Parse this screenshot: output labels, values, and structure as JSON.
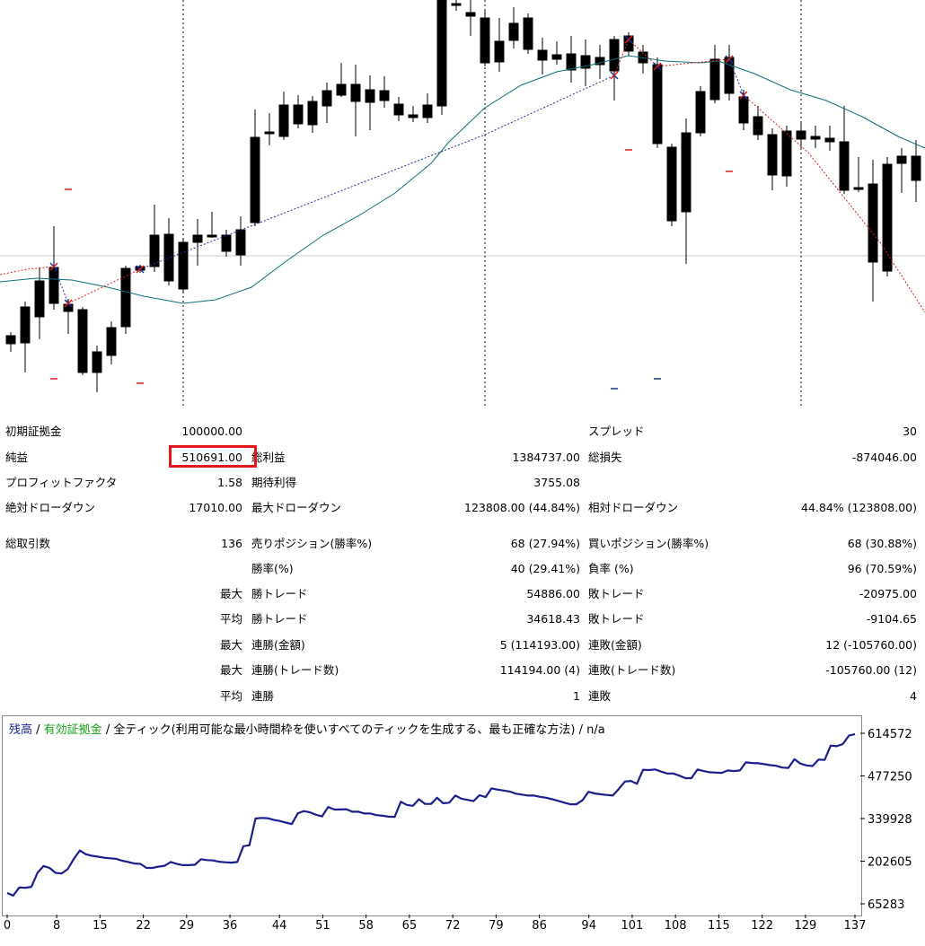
{
  "candle_chart": {
    "colors": {
      "bull_fill": "#ffffff",
      "bear_fill": "#000000",
      "ma": "#0f6e7a",
      "sar_red": "#e31a1c",
      "sar_blue": "#1f2f9a",
      "grid": "#c8c8c8"
    }
  },
  "report": {
    "initial_deposit": {
      "label": "初期証拠金",
      "value": "100000.00"
    },
    "spread": {
      "label": "スプレッド",
      "value": "30"
    },
    "net_profit": {
      "label": "純益",
      "value": "510691.00"
    },
    "gross_profit": {
      "label": "総利益",
      "value": "1384737.00"
    },
    "gross_loss": {
      "label": "総損失",
      "value": "-874046.00"
    },
    "profit_factor": {
      "label": "プロフィットファクタ",
      "value": "1.58"
    },
    "expected_payoff": {
      "label": "期待利得",
      "value": "3755.08"
    },
    "absolute_drawdown": {
      "label": "絶対ドローダウン",
      "value": "17010.00"
    },
    "max_drawdown": {
      "label": "最大ドローダウン",
      "value": "123808.00 (44.84%)"
    },
    "relative_drawdown": {
      "label": "相対ドローダウン",
      "value": "44.84% (123808.00)"
    },
    "total_trades": {
      "label": "総取引数",
      "value": "136"
    },
    "short_positions": {
      "label": "売りポジション(勝率%)",
      "value": "68 (27.94%)"
    },
    "long_positions": {
      "label": "買いポジション(勝率%)",
      "value": "68 (30.88%)"
    },
    "win_rate": {
      "label": "勝率(%)",
      "value": "40 (29.41%)"
    },
    "loss_rate": {
      "label": "負率 (%)",
      "value": "96 (70.59%)"
    },
    "rows": [
      {
        "prefix": "最大",
        "l1": "勝トレード",
        "v1": "54886.00",
        "l2": "敗トレード",
        "v2": "-20975.00"
      },
      {
        "prefix": "平均",
        "l1": "勝トレード",
        "v1": "34618.43",
        "l2": "敗トレード",
        "v2": "-9104.65"
      },
      {
        "prefix": "最大",
        "l1": "連勝(金額)",
        "v1": "5 (114193.00)",
        "l2": "連敗(金額)",
        "v2": "12 (-105760.00)"
      },
      {
        "prefix": "最大",
        "l1": "連勝(トレード数)",
        "v1": "114194.00 (4)",
        "l2": "連敗(トレード数)",
        "v2": "-105760.00 (12)"
      },
      {
        "prefix": "平均",
        "l1": "連勝",
        "v1": "1",
        "l2": "連敗",
        "v2": "4"
      }
    ]
  },
  "equity_chart": {
    "legend": {
      "balance": "残高",
      "sep1": " / ",
      "equity": "有効証拠金",
      "sep2": " / ",
      "model": "全ティック(利用可能な最小時間枠を使いすべてのティックを生成する、最も正確な方法) / n/a"
    },
    "colors": {
      "balance": "#1a1f8c",
      "equity": "#18a018",
      "frame": "#8a8a8a"
    },
    "chart_data": {
      "type": "line",
      "x_ticks": [
        "0",
        "8",
        "15",
        "22",
        "29",
        "36",
        "44",
        "51",
        "58",
        "65",
        "72",
        "79",
        "86",
        "94",
        "101",
        "108",
        "115",
        "122",
        "129",
        "137"
      ],
      "y_ticks": [
        "614572",
        "477250",
        "339928",
        "202605",
        "65283"
      ],
      "ylim": [
        65283,
        614572
      ],
      "xlim": [
        0,
        137
      ],
      "series": [
        {
          "name": "残高",
          "values": [
            100000,
            92000,
            118000,
            117000,
            120000,
            165000,
            187000,
            181000,
            165000,
            163000,
            177000,
            210000,
            237000,
            225000,
            220000,
            217000,
            214000,
            212000,
            210000,
            204000,
            200000,
            195000,
            194000,
            181000,
            181000,
            185000,
            188000,
            200000,
            194000,
            190000,
            190000,
            191000,
            209000,
            206000,
            205000,
            201000,
            199000,
            198000,
            200000,
            251000,
            254000,
            340000,
            342000,
            341000,
            336000,
            332000,
            327000,
            322000,
            357000,
            364000,
            360000,
            352000,
            347000,
            377000,
            369000,
            369000,
            370000,
            362000,
            362000,
            356000,
            356000,
            351000,
            349000,
            346000,
            345000,
            394000,
            384000,
            381000,
            402000,
            387000,
            387000,
            407000,
            389000,
            391000,
            414000,
            404000,
            400000,
            396000,
            415000,
            409000,
            437000,
            433000,
            430000,
            427000,
            420000,
            417000,
            414000,
            414000,
            410000,
            407000,
            402000,
            397000,
            391000,
            386000,
            386000,
            399000,
            426000,
            421000,
            418000,
            416000,
            414000,
            435000,
            459000,
            461000,
            452000,
            497000,
            496000,
            498000,
            491000,
            485000,
            485000,
            478000,
            470000,
            470000,
            498000,
            493000,
            489000,
            488000,
            487000,
            495000,
            493000,
            495000,
            521000,
            519000,
            518000,
            515000,
            512000,
            510000,
            504000,
            503000,
            531000,
            517000,
            511000,
            509000,
            530000,
            529000,
            575000,
            573000,
            580000,
            607000,
            612000
          ]
        }
      ]
    }
  }
}
